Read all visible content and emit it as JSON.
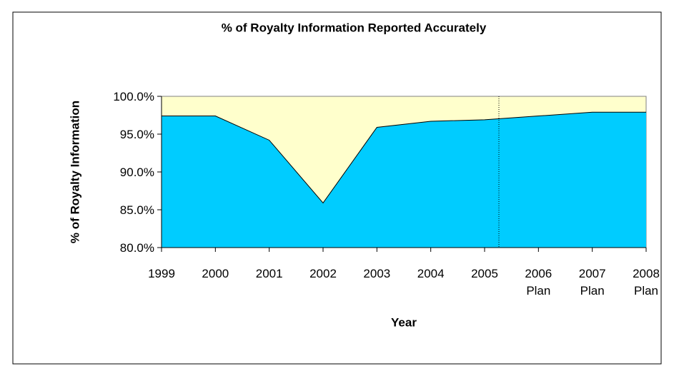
{
  "chart_data": {
    "type": "area",
    "title": "% of Royalty Information Reported Accurately",
    "x_label": "Year",
    "y_label": "% of Royalty Information",
    "categories": [
      "1999",
      "2000",
      "2001",
      "2002",
      "2003",
      "2004",
      "2005",
      "2006\nPlan",
      "2007\nPlan",
      "2008\nPlan"
    ],
    "values": [
      97.4,
      97.4,
      94.2,
      85.9,
      95.9,
      96.7,
      96.9,
      97.4,
      97.9,
      97.9
    ],
    "color": "#00ccff",
    "background": "#ffffcc",
    "ylim": [
      80,
      100
    ],
    "yticks": [
      {
        "value": 80,
        "label": "80.0%"
      },
      {
        "value": 85,
        "label": "85.0%"
      },
      {
        "value": 90,
        "label": "90.0%"
      },
      {
        "value": 95,
        "label": "95.0%"
      },
      {
        "value": 100,
        "label": "100.0%"
      }
    ]
  }
}
